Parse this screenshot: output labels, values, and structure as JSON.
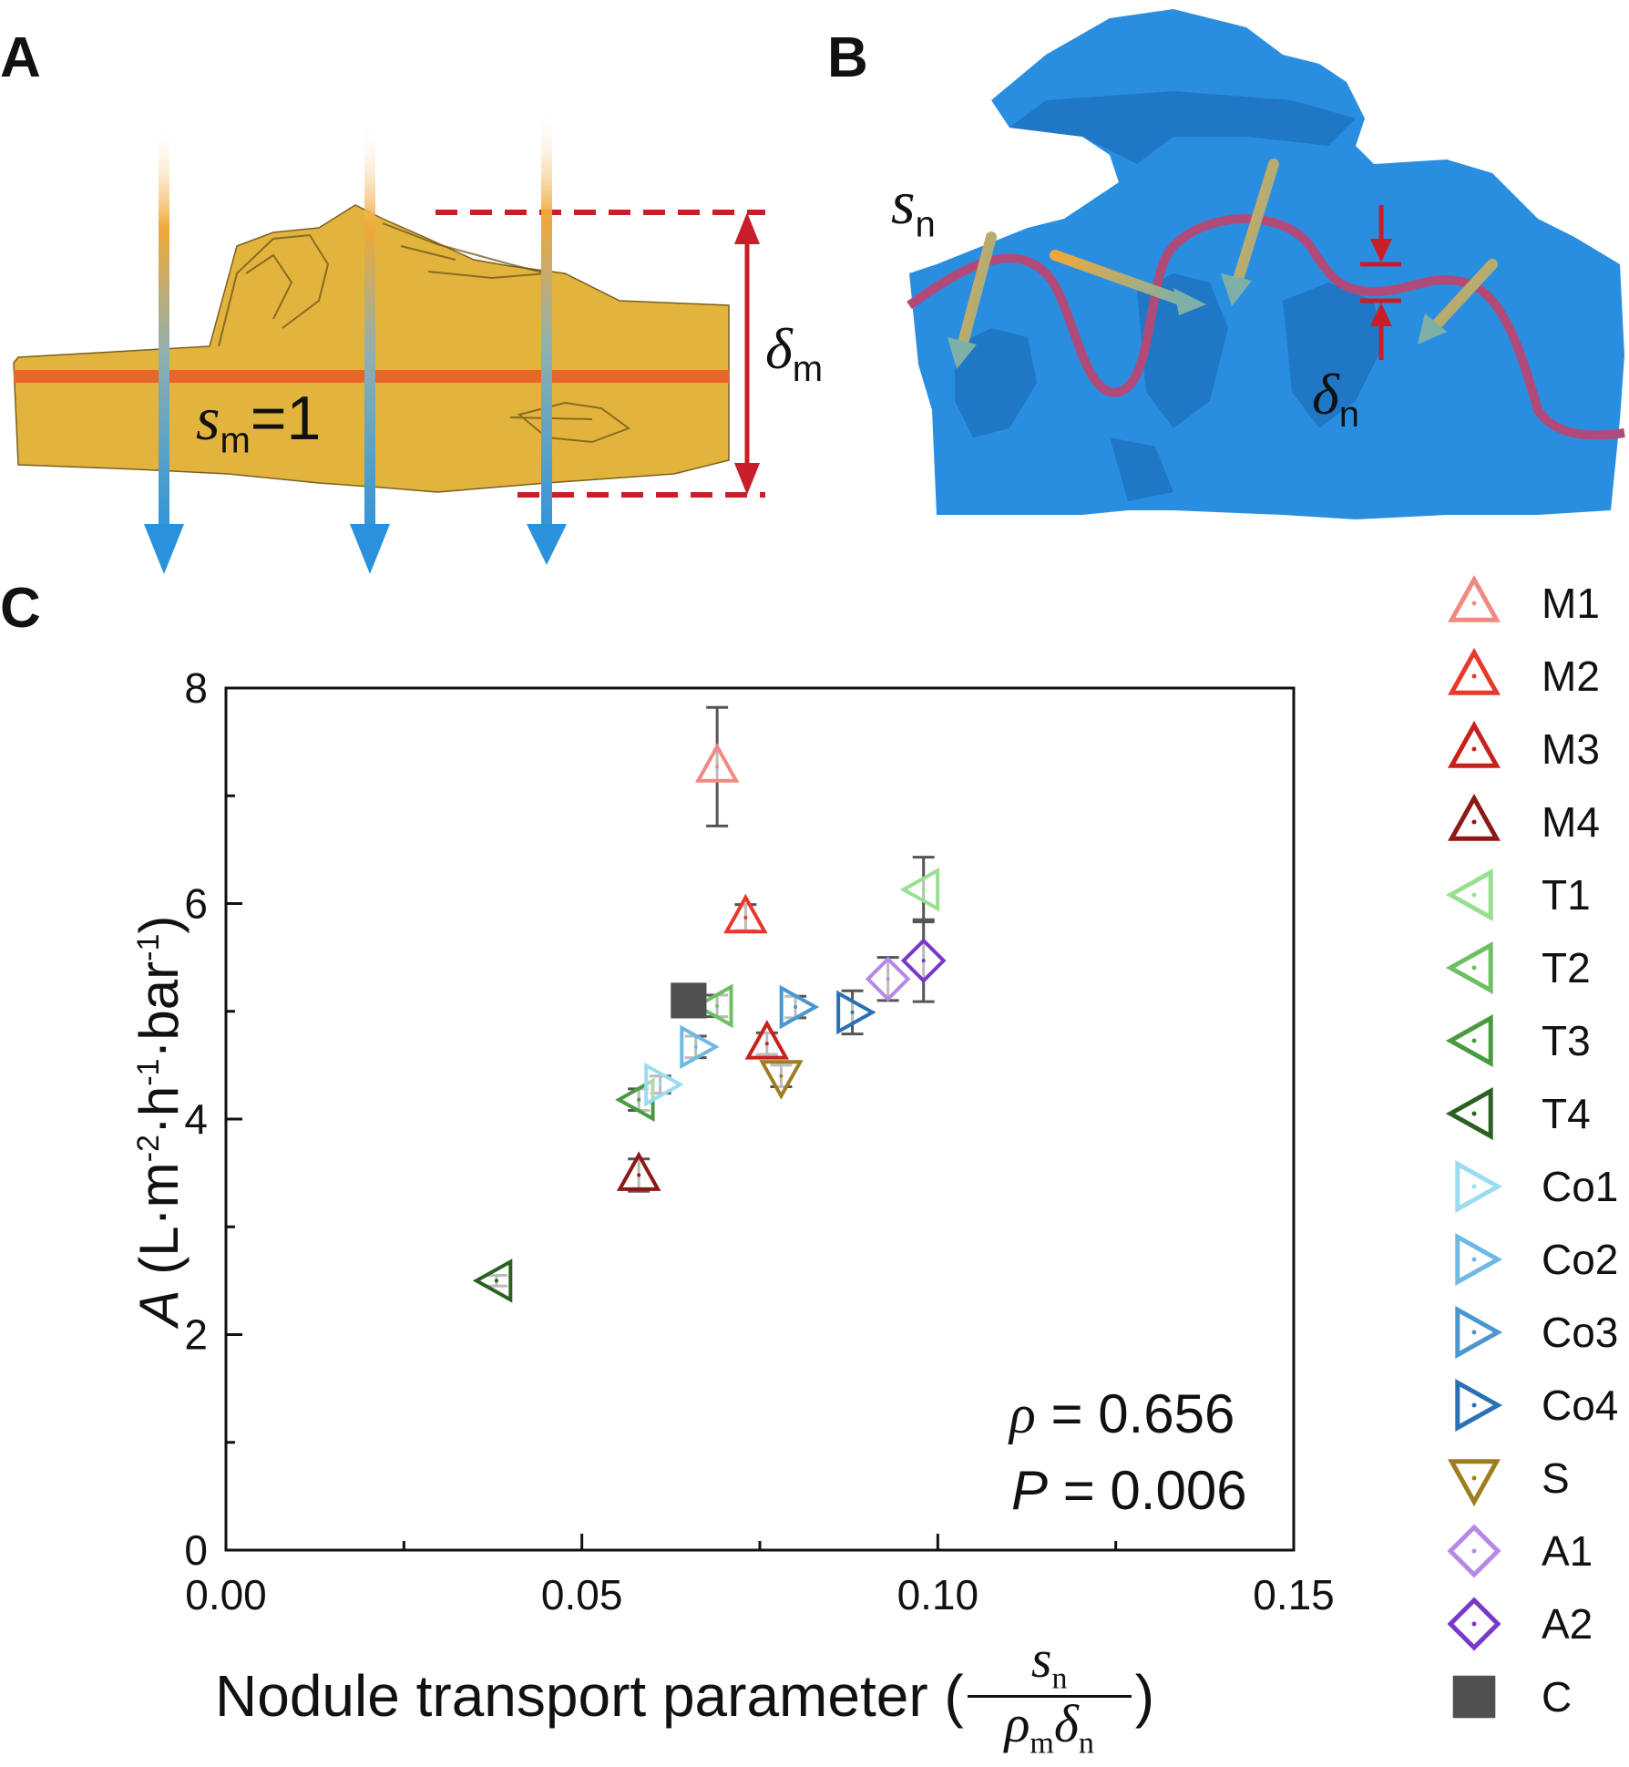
{
  "panels": {
    "a": {
      "letter": "A",
      "s_label": "s",
      "s_sub": "m",
      "s_value": "=1",
      "delta": "δ",
      "delta_sub": "m"
    },
    "b": {
      "letter": "B",
      "s_label": "s",
      "s_sub": "n",
      "delta": "δ",
      "delta_sub": "n"
    },
    "c": {
      "letter": "C"
    }
  },
  "stats": {
    "rho_symbol": "ρ",
    "rho_value": " = 0.656",
    "p_symbol": "P",
    "p_value": " = 0.006"
  },
  "axes": {
    "x_label_prefix": "Nodule transport parameter (",
    "x_label_suffix": ")",
    "x_frac_num": "s",
    "x_frac_num_sub": "n",
    "x_frac_den_rho": "ρ",
    "x_frac_den_rho_sub": "m",
    "x_frac_den_delta": "δ",
    "x_frac_den_delta_sub": "n",
    "y_label_var": "A",
    "y_label_units": "(L·m",
    "y_label_units2": "·h",
    "y_label_units3": "·bar",
    "y_label_close": ")",
    "y_label_sup1": "-2",
    "y_label_sup2": "-1",
    "y_label_sup3": "-1"
  },
  "chart_data": {
    "type": "scatter",
    "xlim": [
      0,
      0.15
    ],
    "ylim": [
      0,
      8
    ],
    "x_ticks": [
      "0.00",
      "0.05",
      "0.10",
      "0.15"
    ],
    "y_ticks": [
      "0",
      "2",
      "4",
      "6",
      "8"
    ],
    "x_tick_values": [
      0,
      0.05,
      0.1,
      0.15
    ],
    "y_tick_values": [
      0,
      2,
      4,
      6,
      8
    ],
    "legend_position": "right",
    "series": [
      {
        "name": "M1",
        "marker": "triangle-up",
        "color": "#f08a80",
        "x": 0.069,
        "y": 7.27,
        "err": 0.55
      },
      {
        "name": "M2",
        "marker": "triangle-up",
        "color": "#e8382a",
        "x": 0.073,
        "y": 5.87,
        "err": 0.12
      },
      {
        "name": "M3",
        "marker": "triangle-up",
        "color": "#c8201c",
        "x": 0.076,
        "y": 4.7,
        "err": 0.1
      },
      {
        "name": "M4",
        "marker": "triangle-up",
        "color": "#8c1a14",
        "x": 0.058,
        "y": 3.48,
        "err": 0.15
      },
      {
        "name": "T1",
        "marker": "triangle-left",
        "color": "#98e090",
        "x": 0.098,
        "y": 6.13,
        "err": 0.3
      },
      {
        "name": "T2",
        "marker": "triangle-left",
        "color": "#6cbf62",
        "x": 0.069,
        "y": 5.05,
        "err": 0.1
      },
      {
        "name": "T3",
        "marker": "triangle-left",
        "color": "#4a9a40",
        "x": 0.058,
        "y": 4.18,
        "err": 0.1
      },
      {
        "name": "T4",
        "marker": "triangle-left",
        "color": "#2a6020",
        "x": 0.038,
        "y": 2.5,
        "err": 0.05
      },
      {
        "name": "Co1",
        "marker": "triangle-right",
        "color": "#9adcf2",
        "x": 0.061,
        "y": 4.32,
        "err": 0.08
      },
      {
        "name": "Co2",
        "marker": "triangle-right",
        "color": "#6fb8e6",
        "x": 0.066,
        "y": 4.67,
        "err": 0.1
      },
      {
        "name": "Co3",
        "marker": "triangle-right",
        "color": "#4a96d0",
        "x": 0.08,
        "y": 5.04,
        "err": 0.1
      },
      {
        "name": "Co4",
        "marker": "triangle-right",
        "color": "#2a70b4",
        "x": 0.088,
        "y": 4.99,
        "err": 0.2
      },
      {
        "name": "S",
        "marker": "triangle-down",
        "color": "#a07c20",
        "x": 0.078,
        "y": 4.4,
        "err": 0.1
      },
      {
        "name": "A1",
        "marker": "diamond",
        "color": "#b888e8",
        "x": 0.093,
        "y": 5.3,
        "err": 0.2
      },
      {
        "name": "A2",
        "marker": "diamond",
        "color": "#7a38c8",
        "x": 0.098,
        "y": 5.47,
        "err": 0.38
      },
      {
        "name": "C",
        "marker": "square",
        "color": "#505050",
        "x": 0.065,
        "y": 5.1,
        "err": 0
      }
    ]
  },
  "colors": {
    "membrane_gold": "#e2b43e",
    "membrane_outline": "#6b5418",
    "polymer_blue": "#2a8ee0",
    "polymer_dark": "#1a6cb8",
    "transport_line": "#b04a78",
    "dashed_red": "#c81e2a",
    "orange_line": "#e8642a"
  }
}
